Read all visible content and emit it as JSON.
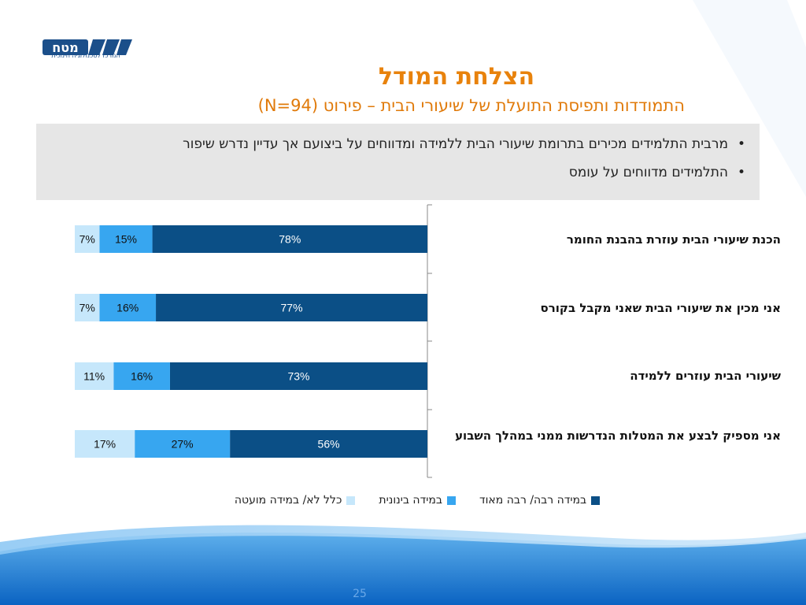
{
  "logo": {
    "text": "מטח",
    "caption": "המרכז לטכנולוגיה חינוכית"
  },
  "title": "הצלחת המודל",
  "subtitle": "התמודדות ותפיסת התועלת של שיעורי הבית – פירוט (N=94)",
  "bullets": [
    "מרבית התלמידים מכירים בתרומת שיעורי הבית ללמידה ומדווחים על ביצועם אך עדיין נדרש שיפור",
    "התלמידים מדווחים על עומס"
  ],
  "bullet_glyph": "•",
  "colors": {
    "high": "#0b4f86",
    "mid": "#37a6f0",
    "low": "#c6e7fb",
    "title": "#e8820c",
    "panel": "#e6e6e6"
  },
  "chart_data": {
    "type": "bar",
    "orientation": "horizontal",
    "stacked": true,
    "categories": [
      "הכנת שיעורי הבית עוזרת בהבנת החומר",
      "אני מכין את שיעורי הבית שאני מקבל בקורס",
      "שיעורי הבית עוזרים ללמידה",
      "אני מספיק לבצע את המטלות הנדרשות ממני במהלך השבוע"
    ],
    "series": [
      {
        "name": "במידה רבה/ רבה מאוד",
        "values": [
          78,
          77,
          73,
          56
        ]
      },
      {
        "name": "במידה בינונית",
        "values": [
          15,
          16,
          16,
          27
        ]
      },
      {
        "name": "כלל לא/ במידה מועטה",
        "values": [
          7,
          7,
          11,
          17
        ]
      }
    ],
    "value_suffix": "%",
    "xlim": [
      0,
      100
    ],
    "legend": "bottom"
  },
  "page_number": "25"
}
